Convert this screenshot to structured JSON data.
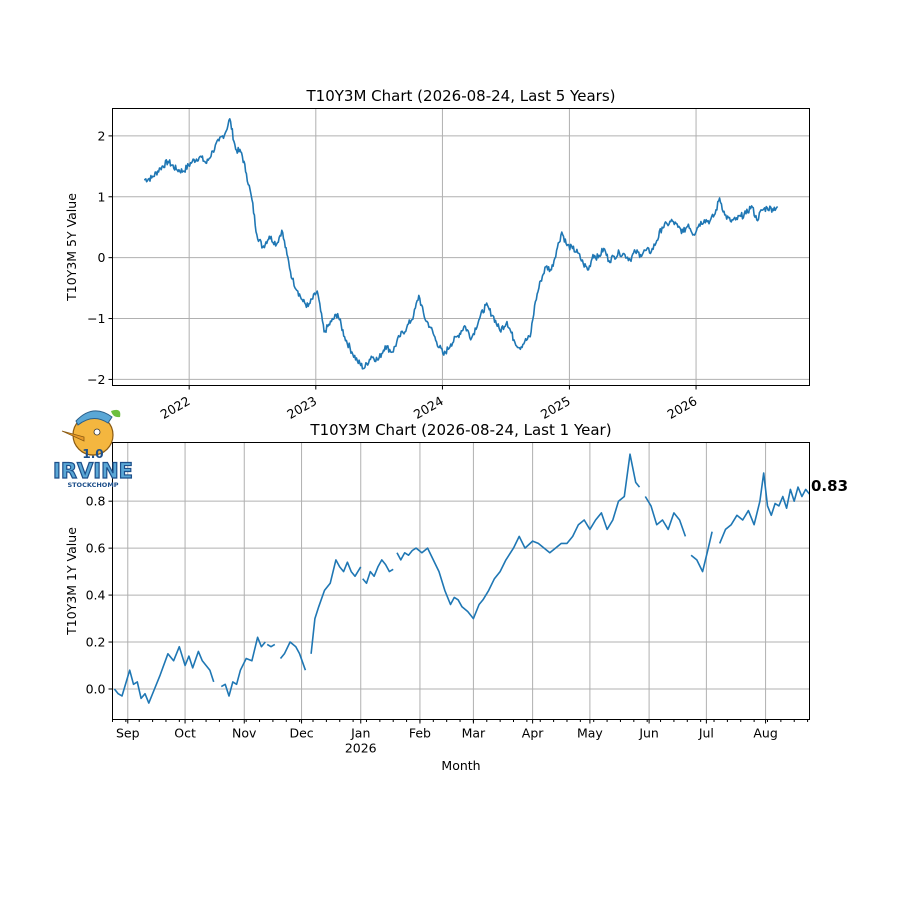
{
  "logo": {
    "text_top": "1.0",
    "text_main": "IRVINE",
    "text_sub": "STOCKCHOMP"
  },
  "colors": {
    "series": "#1f77b4",
    "grid": "#b0b0b0"
  },
  "chart_data": [
    {
      "type": "line",
      "title": "T10Y3M Chart (2026-08-24, Last 5 Years)",
      "ylabel": "T10Y3M 5Y Value",
      "xlabel": "",
      "xlim": [
        "2021-05-25",
        "2026-11-24"
      ],
      "ylim": [
        -2.1,
        2.45
      ],
      "xticks": [
        {
          "date": "2022-01-01",
          "label": "2022"
        },
        {
          "date": "2023-01-01",
          "label": "2023"
        },
        {
          "date": "2024-01-01",
          "label": "2024"
        },
        {
          "date": "2025-01-01",
          "label": "2025"
        },
        {
          "date": "2026-01-01",
          "label": "2026"
        }
      ],
      "yticks": [
        -2,
        -1,
        0,
        1,
        2
      ],
      "grid": true,
      "series": [
        {
          "x": [
            "2021-08-24",
            "2021-09-15",
            "2021-10-10",
            "2021-11-01",
            "2021-11-25",
            "2021-12-15",
            "2022-01-10",
            "2022-02-01",
            "2022-02-20",
            "2022-03-10",
            "2022-03-28",
            "2022-04-15",
            "2022-04-28",
            "2022-05-15",
            "2022-06-01",
            "2022-06-15",
            "2022-07-01",
            "2022-07-15",
            "2022-08-01",
            "2022-08-20",
            "2022-09-10",
            "2022-09-25",
            "2022-10-10",
            "2022-10-25",
            "2022-11-10",
            "2022-11-25",
            "2022-12-10",
            "2023-01-05",
            "2023-01-25",
            "2023-02-15",
            "2023-03-05",
            "2023-03-25",
            "2023-04-15",
            "2023-05-01",
            "2023-05-20",
            "2023-06-10",
            "2023-06-30",
            "2023-07-20",
            "2023-08-10",
            "2023-08-30",
            "2023-09-20",
            "2023-10-10",
            "2023-10-25",
            "2023-11-10",
            "2023-11-28",
            "2023-12-15",
            "2024-01-05",
            "2024-01-25",
            "2024-02-15",
            "2024-03-05",
            "2024-03-25",
            "2024-04-15",
            "2024-05-05",
            "2024-05-25",
            "2024-06-15",
            "2024-07-05",
            "2024-07-25",
            "2024-08-10",
            "2024-08-25",
            "2024-09-10",
            "2024-09-25",
            "2024-10-10",
            "2024-10-25",
            "2024-11-10",
            "2024-11-25",
            "2024-12-10",
            "2024-12-25",
            "2025-01-10",
            "2025-01-25",
            "2025-02-10",
            "2025-02-25",
            "2025-03-10",
            "2025-03-25",
            "2025-04-10",
            "2025-04-25",
            "2025-05-10",
            "2025-05-25",
            "2025-06-10",
            "2025-06-25",
            "2025-07-10",
            "2025-07-25",
            "2025-08-10",
            "2025-08-25",
            "2025-09-10",
            "2025-09-25",
            "2025-10-10",
            "2025-10-25",
            "2025-11-10",
            "2025-11-25",
            "2025-12-10",
            "2025-12-25",
            "2026-01-10",
            "2026-01-25",
            "2026-02-10",
            "2026-02-25",
            "2026-03-10",
            "2026-03-25",
            "2026-04-10",
            "2026-04-25",
            "2026-05-10",
            "2026-05-25",
            "2026-06-10",
            "2026-06-25",
            "2026-07-10",
            "2026-07-25",
            "2026-08-10",
            "2026-08-24"
          ],
          "y": [
            1.28,
            1.31,
            1.47,
            1.58,
            1.45,
            1.42,
            1.58,
            1.66,
            1.55,
            1.75,
            1.92,
            2.05,
            2.28,
            1.78,
            1.72,
            1.38,
            0.95,
            0.38,
            0.17,
            0.35,
            0.22,
            0.45,
            0.05,
            -0.35,
            -0.55,
            -0.72,
            -0.8,
            -0.55,
            -1.22,
            -1.05,
            -0.92,
            -1.3,
            -1.55,
            -1.7,
            -1.82,
            -1.62,
            -1.68,
            -1.45,
            -1.55,
            -1.3,
            -1.15,
            -0.95,
            -0.62,
            -0.98,
            -1.15,
            -1.38,
            -1.6,
            -1.42,
            -1.28,
            -1.12,
            -1.32,
            -1.02,
            -0.78,
            -0.95,
            -1.2,
            -1.05,
            -1.35,
            -1.48,
            -1.38,
            -1.3,
            -0.72,
            -0.38,
            -0.15,
            -0.2,
            0.12,
            0.42,
            0.2,
            0.15,
            0.08,
            -0.1,
            -0.2,
            0.05,
            0.0,
            0.15,
            -0.05,
            0.02,
            0.08,
            0.05,
            -0.03,
            0.1,
            0.05,
            0.12,
            0.1,
            0.28,
            0.5,
            0.55,
            0.6,
            0.5,
            0.42,
            0.55,
            0.38,
            0.55,
            0.62,
            0.6,
            0.72,
            0.98,
            0.7,
            0.6,
            0.62,
            0.68,
            0.72,
            0.85,
            0.62,
            0.78,
            0.82,
            0.8,
            0.84
          ]
        }
      ]
    },
    {
      "type": "line",
      "title": "T10Y3M Chart (2026-08-24, Last 1 Year)",
      "ylabel": "T10Y3M 1Y Value",
      "xlabel": "Month",
      "xlim": [
        "2025-08-24",
        "2026-08-24"
      ],
      "ylim": [
        -0.13,
        1.05
      ],
      "xticks": [
        {
          "date": "2025-09-01",
          "label": "Sep"
        },
        {
          "date": "2025-10-01",
          "label": "Oct"
        },
        {
          "date": "2025-11-01",
          "label": "Nov"
        },
        {
          "date": "2025-12-01",
          "label": "Dec"
        },
        {
          "date": "2026-01-01",
          "label": "Jan",
          "sublabel": "2026"
        },
        {
          "date": "2026-02-01",
          "label": "Feb"
        },
        {
          "date": "2026-03-01",
          "label": "Mar"
        },
        {
          "date": "2026-04-01",
          "label": "Apr"
        },
        {
          "date": "2026-05-01",
          "label": "May"
        },
        {
          "date": "2026-06-01",
          "label": "Jun"
        },
        {
          "date": "2026-07-01",
          "label": "Jul"
        },
        {
          "date": "2026-08-01",
          "label": "Aug"
        }
      ],
      "yticks": [
        0.0,
        0.2,
        0.4,
        0.6,
        0.8
      ],
      "grid": true,
      "last_value_label": "0.83",
      "series": [
        {
          "segments": [
            {
              "x": [
                "2025-08-25",
                "2025-08-27",
                "2025-08-29",
                "2025-09-02",
                "2025-09-04",
                "2025-09-06",
                "2025-09-08",
                "2025-09-10",
                "2025-09-12",
                "2025-09-15",
                "2025-09-18",
                "2025-09-22",
                "2025-09-25",
                "2025-09-28",
                "2025-10-01",
                "2025-10-03",
                "2025-10-05",
                "2025-10-08",
                "2025-10-10",
                "2025-10-12",
                "2025-10-14",
                "2025-10-16"
              ],
              "y": [
                0.0,
                -0.02,
                -0.03,
                0.08,
                0.02,
                0.03,
                -0.04,
                -0.02,
                -0.06,
                0.0,
                0.06,
                0.15,
                0.12,
                0.18,
                0.1,
                0.14,
                0.09,
                0.16,
                0.12,
                0.1,
                0.08,
                0.03
              ]
            },
            {
              "x": [
                "2025-10-20",
                "2025-10-22",
                "2025-10-24",
                "2025-10-26",
                "2025-10-28",
                "2025-10-30",
                "2025-11-02",
                "2025-11-05",
                "2025-11-08",
                "2025-11-10",
                "2025-11-12"
              ],
              "y": [
                0.01,
                0.02,
                -0.03,
                0.03,
                0.02,
                0.08,
                0.13,
                0.12,
                0.22,
                0.18,
                0.2
              ]
            },
            {
              "x": [
                "2025-11-13",
                "2025-11-15",
                "2025-11-17"
              ],
              "y": [
                0.19,
                0.18,
                0.19
              ]
            },
            {
              "x": [
                "2025-11-20",
                "2025-11-22",
                "2025-11-25",
                "2025-11-28",
                "2025-11-30",
                "2025-12-03"
              ],
              "y": [
                0.13,
                0.15,
                0.2,
                0.18,
                0.15,
                0.08
              ]
            },
            {
              "x": [
                "2025-12-06",
                "2025-12-08",
                "2025-12-10",
                "2025-12-13",
                "2025-12-16",
                "2025-12-19",
                "2025-12-21",
                "2025-12-23",
                "2025-12-25",
                "2025-12-27",
                "2025-12-29",
                "2026-01-01"
              ],
              "y": [
                0.15,
                0.3,
                0.35,
                0.42,
                0.45,
                0.55,
                0.52,
                0.5,
                0.54,
                0.5,
                0.48,
                0.52
              ]
            },
            {
              "x": [
                "2026-01-02",
                "2026-01-04",
                "2026-01-06",
                "2026-01-08",
                "2026-01-10",
                "2026-01-12",
                "2026-01-14",
                "2026-01-16",
                "2026-01-18"
              ],
              "y": [
                0.47,
                0.45,
                0.5,
                0.48,
                0.52,
                0.55,
                0.53,
                0.5,
                0.51
              ]
            },
            {
              "x": [
                "2026-01-20",
                "2026-01-22",
                "2026-01-24",
                "2026-01-26",
                "2026-01-28",
                "2026-01-30",
                "2026-02-02",
                "2026-02-05",
                "2026-02-08",
                "2026-02-11",
                "2026-02-14",
                "2026-02-17",
                "2026-02-19",
                "2026-02-21",
                "2026-02-23",
                "2026-02-26",
                "2026-03-01",
                "2026-03-04",
                "2026-03-06",
                "2026-03-09",
                "2026-03-12",
                "2026-03-15",
                "2026-03-18",
                "2026-03-22",
                "2026-03-25",
                "2026-03-28",
                "2026-04-01",
                "2026-04-04",
                "2026-04-07",
                "2026-04-10",
                "2026-04-13",
                "2026-04-16",
                "2026-04-19",
                "2026-04-22",
                "2026-04-25",
                "2026-04-28",
                "2026-05-01",
                "2026-05-04",
                "2026-05-07",
                "2026-05-10",
                "2026-05-13",
                "2026-05-16",
                "2026-05-19",
                "2026-05-22",
                "2026-05-25",
                "2026-05-27"
              ],
              "y": [
                0.58,
                0.55,
                0.58,
                0.57,
                0.59,
                0.6,
                0.58,
                0.6,
                0.55,
                0.5,
                0.42,
                0.36,
                0.39,
                0.38,
                0.35,
                0.33,
                0.3,
                0.36,
                0.38,
                0.42,
                0.47,
                0.5,
                0.55,
                0.6,
                0.65,
                0.6,
                0.63,
                0.62,
                0.6,
                0.58,
                0.6,
                0.62,
                0.62,
                0.65,
                0.7,
                0.72,
                0.68,
                0.72,
                0.75,
                0.68,
                0.72,
                0.8,
                0.82,
                1.0,
                0.88,
                0.86
              ]
            },
            {
              "x": [
                "2026-05-30",
                "2026-06-02",
                "2026-06-05",
                "2026-06-08",
                "2026-06-11",
                "2026-06-14",
                "2026-06-17",
                "2026-06-20"
              ],
              "y": [
                0.82,
                0.78,
                0.7,
                0.72,
                0.68,
                0.75,
                0.72,
                0.65
              ]
            },
            {
              "x": [
                "2026-06-23",
                "2026-06-26",
                "2026-06-29",
                "2026-07-02",
                "2026-07-04"
              ],
              "y": [
                0.57,
                0.55,
                0.5,
                0.6,
                0.67
              ]
            },
            {
              "x": [
                "2026-07-08",
                "2026-07-11",
                "2026-07-14",
                "2026-07-17",
                "2026-07-20",
                "2026-07-23",
                "2026-07-26",
                "2026-07-29",
                "2026-07-31",
                "2026-08-02",
                "2026-08-04",
                "2026-08-06",
                "2026-08-08",
                "2026-08-10",
                "2026-08-12",
                "2026-08-14",
                "2026-08-16",
                "2026-08-18",
                "2026-08-20",
                "2026-08-22",
                "2026-08-24"
              ],
              "y": [
                0.62,
                0.68,
                0.7,
                0.74,
                0.72,
                0.76,
                0.7,
                0.8,
                0.92,
                0.78,
                0.74,
                0.79,
                0.78,
                0.82,
                0.77,
                0.85,
                0.8,
                0.86,
                0.82,
                0.85,
                0.83
              ]
            }
          ]
        }
      ]
    }
  ]
}
